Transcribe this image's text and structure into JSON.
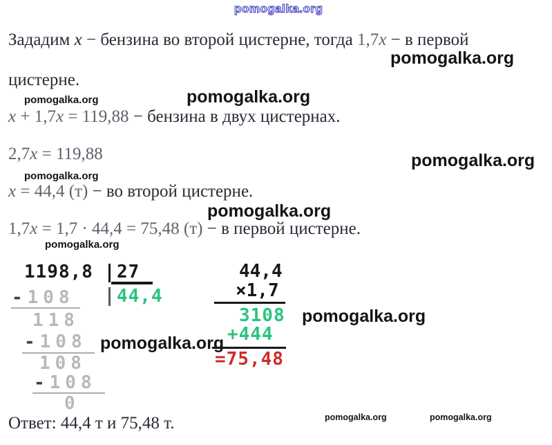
{
  "watermark": {
    "label": "pomogalka.org"
  },
  "colors": {
    "watermark_blue": "#3434bb",
    "text": "#262b36",
    "math_text": "#5d626b",
    "calc_green": "#2bc47e",
    "calc_red": "#cf2b2b",
    "calc_grey": "#b5b9bc",
    "calc_black": "#15181c"
  },
  "solution": {
    "lines": [
      {
        "segments": [
          {
            "t": "Зададим "
          },
          {
            "t": "x",
            "i": 1
          },
          {
            "t": " − бензина во второй цистерне, тогда "
          },
          {
            "t": "1,7",
            "m": 1
          },
          {
            "t": "x",
            "i": 1,
            "m": 1
          },
          {
            "t": " − в первой"
          }
        ]
      },
      {
        "segments": [
          {
            "t": "цистерне."
          }
        ]
      },
      {
        "segments": [
          {
            "t": "x",
            "i": 1,
            "m": 1
          },
          {
            "t": " + 1,7",
            "m": 1
          },
          {
            "t": "x",
            "i": 1,
            "m": 1
          },
          {
            "t": " = 119,88 ",
            "m": 1
          },
          {
            "t": "− бензина в двух цистернах."
          }
        ]
      },
      {
        "segments": [
          {
            "t": "2,7",
            "m": 1
          },
          {
            "t": "x",
            "i": 1,
            "m": 1
          },
          {
            "t": " = 119,88",
            "m": 1
          }
        ]
      },
      {
        "segments": [
          {
            "t": "x",
            "i": 1,
            "m": 1
          },
          {
            "t": " = 44,4 (т) ",
            "m": 1
          },
          {
            "t": "− во второй цистерне."
          }
        ]
      },
      {
        "segments": [
          {
            "t": "1,7",
            "m": 1
          },
          {
            "t": "x",
            "i": 1,
            "m": 1
          },
          {
            "t": " = 1,7 · 44,4 = 75,48 (т) ",
            "m": 1
          },
          {
            "t": "− в первой цистерне."
          }
        ]
      }
    ],
    "answer": {
      "segments": [
        {
          "t": "Ответ: 44,4 т и 75,48 т."
        }
      ]
    }
  },
  "division": {
    "dividend": "1198,8",
    "divisor": "27",
    "quotient": "44,4",
    "rows": [
      {
        "sign": "-",
        "digits": "108"
      },
      {
        "digits": "118"
      },
      {
        "sign": "-",
        "digits": "108"
      },
      {
        "digits": "108"
      },
      {
        "sign": "-",
        "digits": "108"
      },
      {
        "digits": "0"
      }
    ]
  },
  "multiplication": {
    "multiplicand": "44,4",
    "operator_row": "×1,7",
    "partial1": "3108",
    "partial2": "+444",
    "result": "=75,48"
  }
}
